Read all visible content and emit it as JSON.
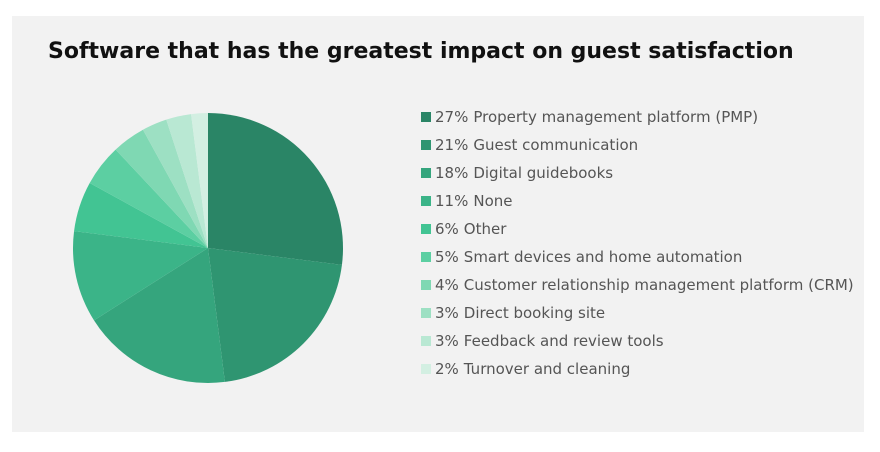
{
  "chart_data": {
    "type": "pie",
    "title": "Software that has the greatest impact on guest satisfaction",
    "categories": [
      "Property management platform (PMP)",
      "Guest communication",
      "Digital guidebooks",
      "None",
      "Other",
      "Smart devices and home automation",
      "Customer relationship management platform (CRM)",
      "Direct booking site",
      "Feedback and review tools",
      "Turnover and cleaning"
    ],
    "values": [
      27,
      21,
      18,
      11,
      6,
      5,
      4,
      3,
      3,
      2
    ],
    "value_labels": [
      "27%",
      "21%",
      "18%",
      "11%",
      "6%",
      "5%",
      "4%",
      "3%",
      "3%",
      "2%"
    ],
    "colors": [
      "#2a8566",
      "#2f9571",
      "#35a57d",
      "#3bb488",
      "#42c493",
      "#5ccfa2",
      "#7fd8b3",
      "#9de0c3",
      "#b9e8d3",
      "#d3efe2"
    ],
    "legend": "right"
  }
}
